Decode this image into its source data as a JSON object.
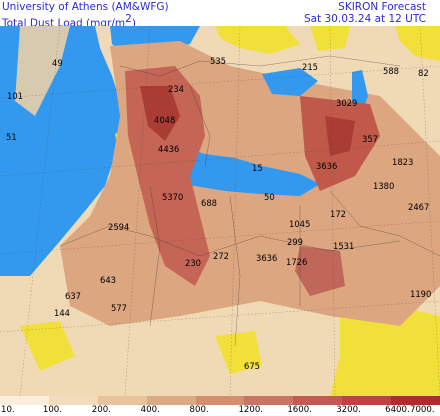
{
  "header": {
    "org": "University of Athens (AM&WFG)",
    "field_prefix": "Total Dust Load (mgr/m",
    "field_sup": "2",
    "field_suffix": ")",
    "model": "SKIRON Forecast",
    "valid_time": "Sat 30.03.24 at 12 UTC"
  },
  "map": {
    "region": "Europe, North Africa and Middle East",
    "labels": [
      "49",
      "101",
      "51",
      "535",
      "215",
      "588",
      "82",
      "234",
      "3029",
      "357",
      "1823",
      "4048",
      "4436",
      "15",
      "3636",
      "1380",
      "2467",
      "5370",
      "688",
      "50",
      "1045",
      "172",
      "2594",
      "299",
      "1531",
      "230",
      "272",
      "3636",
      "1726",
      "643",
      "637",
      "577",
      "144",
      "1190",
      "675"
    ]
  },
  "legend": {
    "ticks": [
      "10.",
      "100.",
      "200.",
      "400.",
      "800.",
      "1200.",
      "1600.",
      "3200.",
      "6400.",
      "7000."
    ],
    "colors": [
      "#fbeedb",
      "#f3dcbd",
      "#e9c39c",
      "#dcaa82",
      "#d38f6e",
      "#c97563",
      "#c05a53",
      "#b84444",
      "#a92e2e"
    ]
  },
  "colors": {
    "sea": "#3399ee",
    "low_dust": "#f0d9b5",
    "mid_dust": "#d99a78",
    "high_dust": "#b8503f",
    "no_data": "#f2e03a"
  }
}
